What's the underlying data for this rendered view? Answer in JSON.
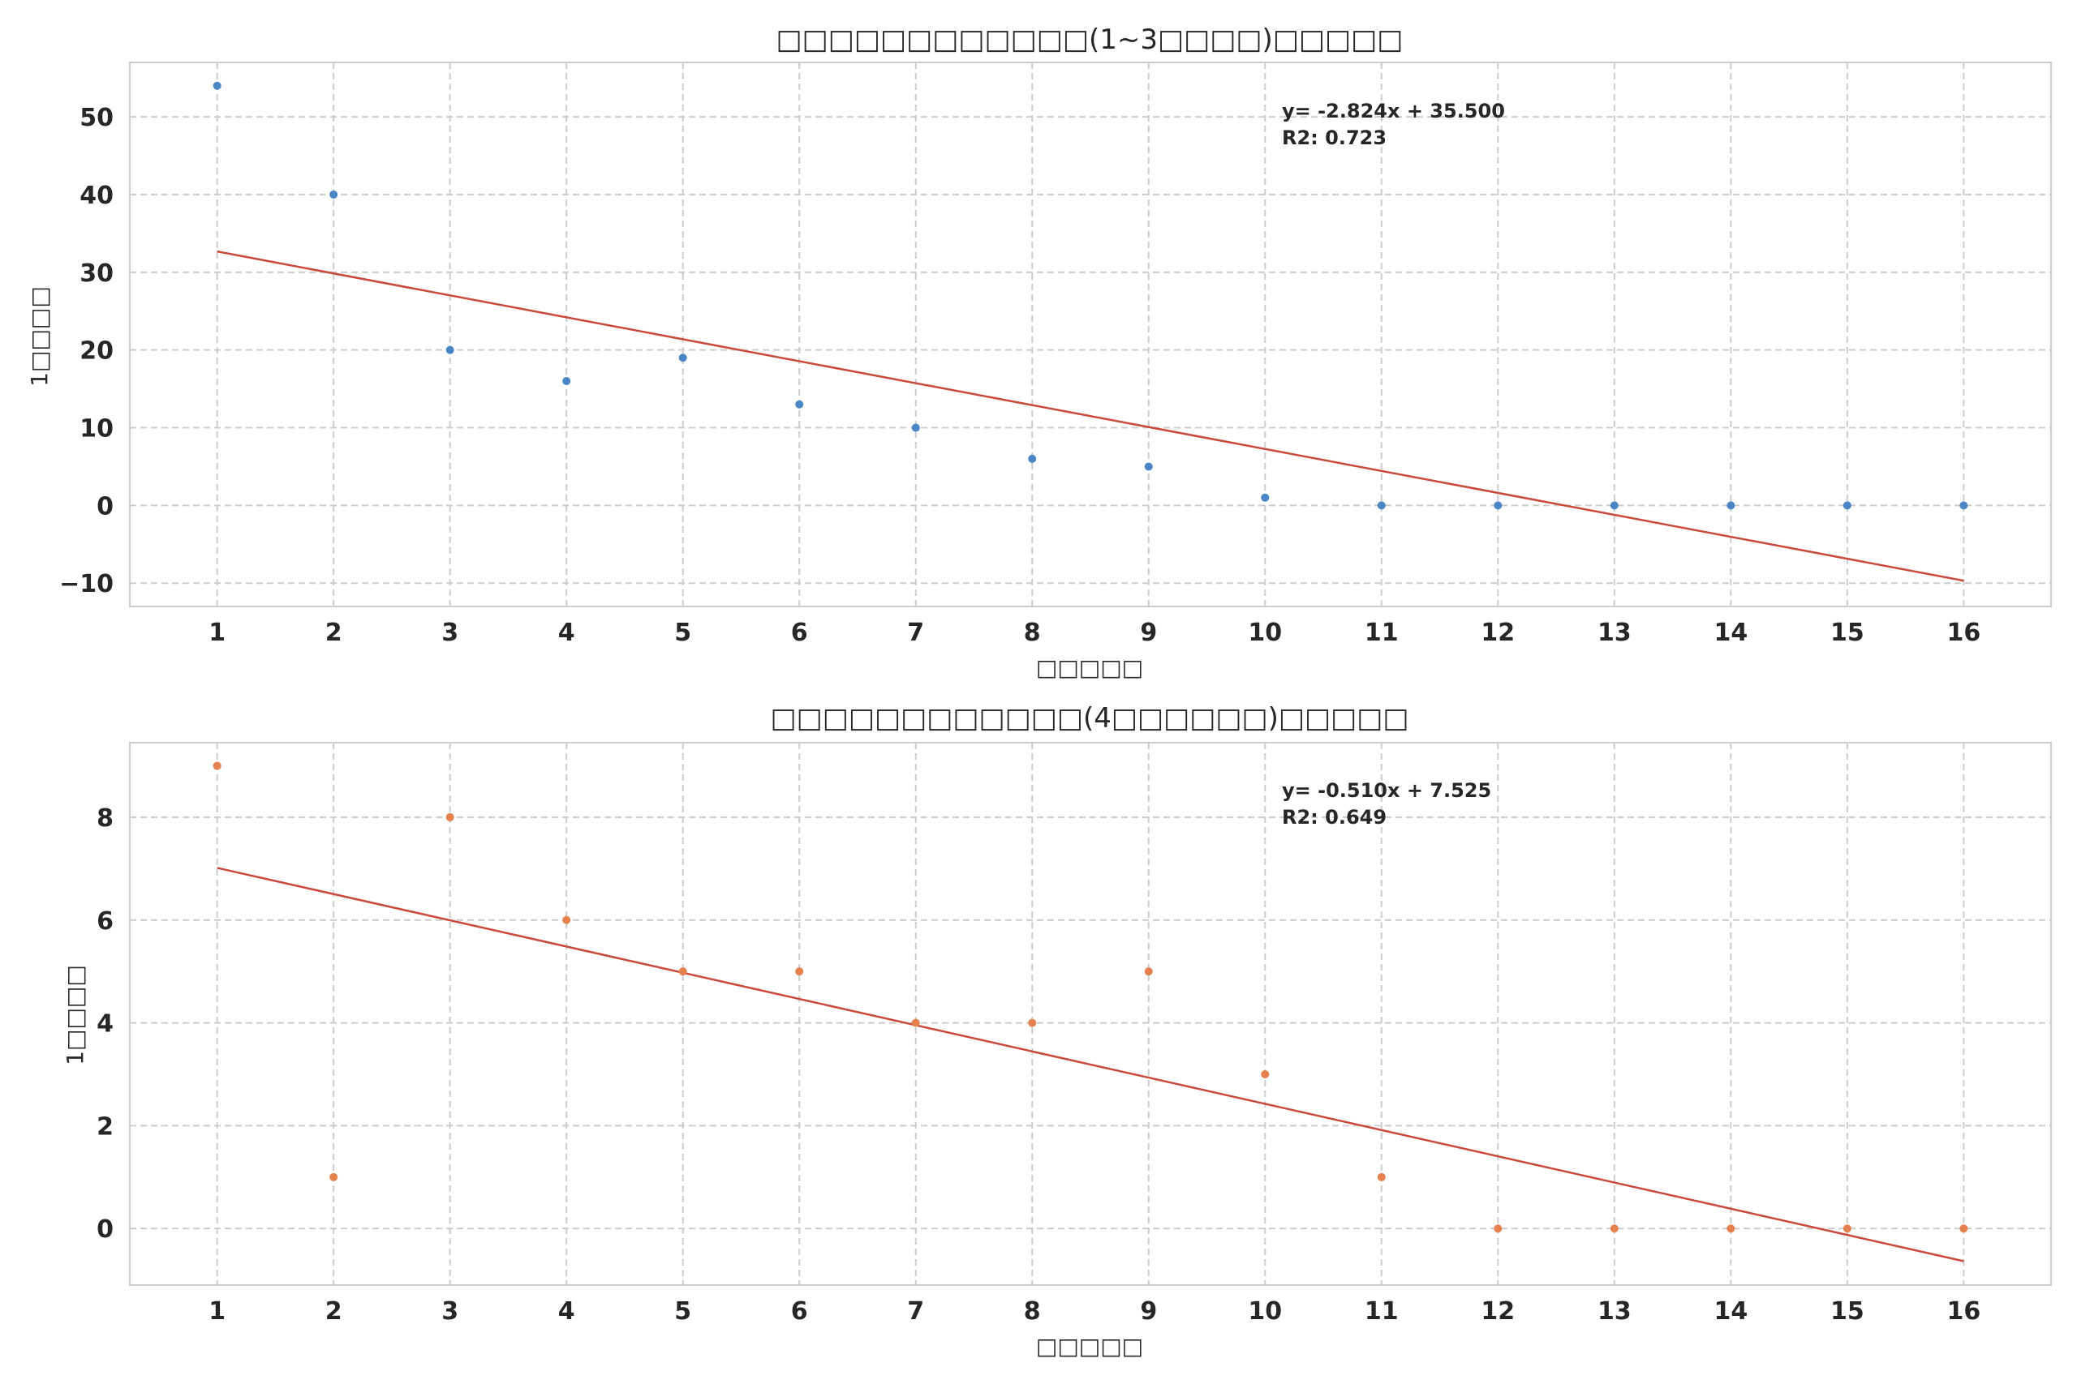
{
  "chart_data": [
    {
      "type": "scatter",
      "title": "□□□□□□□□□□□□(1~3□□□□)□□□□□",
      "xlabel": "□□□□□",
      "ylabel": "1□□□□",
      "x": [
        1,
        2,
        3,
        4,
        5,
        6,
        7,
        8,
        9,
        10,
        11,
        12,
        13,
        14,
        15,
        16
      ],
      "xticks": [
        "1",
        "2",
        "3",
        "4",
        "5",
        "6",
        "7",
        "8",
        "9",
        "10",
        "11",
        "12",
        "13",
        "14",
        "15",
        "16"
      ],
      "xlim": [
        0.25,
        16.75
      ],
      "ylim": [
        -13,
        57
      ],
      "yticks": [
        -10,
        0,
        10,
        20,
        30,
        40,
        50
      ],
      "ytick_labels": [
        "−10",
        "0",
        "10",
        "20",
        "30",
        "40",
        "50"
      ],
      "grid": true,
      "point_color": "#4a86c5",
      "series": [
        {
          "values": [
            54,
            40,
            20,
            16,
            19,
            13,
            10,
            6,
            5,
            1,
            0,
            0,
            0,
            0,
            0,
            0
          ]
        }
      ],
      "trendline": {
        "slope": -2.824,
        "intercept": 35.5,
        "color": "#c94a3c"
      },
      "annotation": {
        "line1": "y= -2.824x + 35.500",
        "line2": "R2: 0.723"
      }
    },
    {
      "type": "scatter",
      "title": "□□□□□□□□□□□□(4□□□□□□)□□□□□",
      "xlabel": "□□□□□",
      "ylabel": "1□□□□",
      "x": [
        1,
        2,
        3,
        4,
        5,
        6,
        7,
        8,
        9,
        10,
        11,
        12,
        13,
        14,
        15,
        16
      ],
      "xticks": [
        "1",
        "2",
        "3",
        "4",
        "5",
        "6",
        "7",
        "8",
        "9",
        "10",
        "11",
        "12",
        "13",
        "14",
        "15",
        "16"
      ],
      "xlim": [
        0.25,
        16.75
      ],
      "ylim": [
        -1.1,
        9.45
      ],
      "yticks": [
        0,
        2,
        4,
        6,
        8
      ],
      "ytick_labels": [
        "0",
        "2",
        "4",
        "6",
        "8"
      ],
      "grid": true,
      "point_color": "#e5804f",
      "series": [
        {
          "values": [
            9,
            1,
            8,
            6,
            5,
            5,
            4,
            4,
            5,
            3,
            1,
            0,
            0,
            0,
            0,
            0
          ]
        }
      ],
      "trendline": {
        "slope": -0.51,
        "intercept": 7.525,
        "color": "#c94a3c"
      },
      "annotation": {
        "line1": "y= -0.510x + 7.525",
        "line2": "R2: 0.649"
      }
    }
  ]
}
